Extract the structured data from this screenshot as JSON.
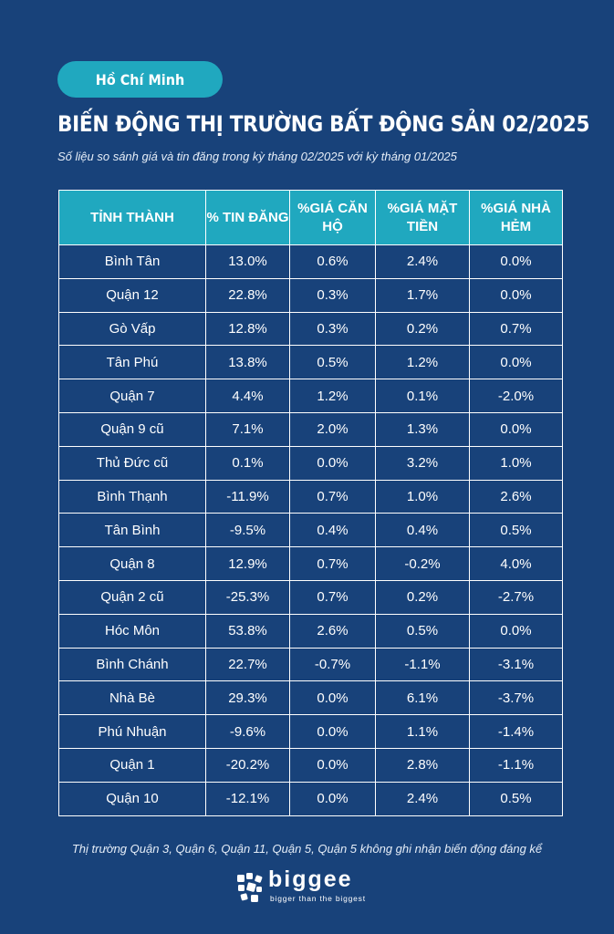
{
  "header": {
    "city_label": "Hồ Chí Minh",
    "title": "BIẾN ĐỘNG THỊ TRƯỜNG BẤT ĐỘNG SẢN 02/2025",
    "subtitle": "Số liệu so sánh giá và tin đăng trong kỳ tháng 02/2025 với kỳ tháng 01/2025"
  },
  "table": {
    "columns": [
      "TỈNH THÀNH",
      "% TIN ĐĂNG",
      "%GIÁ CĂN HỘ",
      "%GIÁ MẶT TIỀN",
      "%GIÁ NHÀ HẺM"
    ],
    "rows": [
      [
        "Bình Tân",
        "13.0%",
        "0.6%",
        "2.4%",
        "0.0%"
      ],
      [
        "Quận 12",
        "22.8%",
        "0.3%",
        "1.7%",
        "0.0%"
      ],
      [
        "Gò Vấp",
        "12.8%",
        "0.3%",
        "0.2%",
        "0.7%"
      ],
      [
        "Tân Phú",
        "13.8%",
        "0.5%",
        "1.2%",
        "0.0%"
      ],
      [
        "Quận 7",
        "4.4%",
        "1.2%",
        "0.1%",
        "-2.0%"
      ],
      [
        "Quận 9 cũ",
        "7.1%",
        "2.0%",
        "1.3%",
        "0.0%"
      ],
      [
        "Thủ Đức cũ",
        "0.1%",
        "0.0%",
        "3.2%",
        "1.0%"
      ],
      [
        "Bình Thạnh",
        "-11.9%",
        "0.7%",
        "1.0%",
        "2.6%"
      ],
      [
        "Tân Bình",
        "-9.5%",
        "0.4%",
        "0.4%",
        "0.5%"
      ],
      [
        "Quận 8",
        "12.9%",
        "0.7%",
        "-0.2%",
        "4.0%"
      ],
      [
        "Quận 2 cũ",
        "-25.3%",
        "0.7%",
        "0.2%",
        "-2.7%"
      ],
      [
        "Hóc Môn",
        "53.8%",
        "2.6%",
        "0.5%",
        "0.0%"
      ],
      [
        "Bình Chánh",
        "22.7%",
        "-0.7%",
        "-1.1%",
        "-3.1%"
      ],
      [
        "Nhà Bè",
        "29.3%",
        "0.0%",
        "6.1%",
        "-3.7%"
      ],
      [
        "Phú Nhuận",
        "-9.6%",
        "0.0%",
        "1.1%",
        "-1.4%"
      ],
      [
        "Quận 1",
        "-20.2%",
        "0.0%",
        "2.8%",
        "-1.1%"
      ],
      [
        "Quận 10",
        "-12.1%",
        "0.0%",
        "2.4%",
        "0.5%"
      ]
    ]
  },
  "footnote": "Thị trường Quận 3, Quận 6, Quận 11, Quận 5, Quận 5 không ghi nhận biến động đáng kể",
  "brand": {
    "name": "biggee",
    "tagline": "bigger than the biggest",
    "icon": "biggee-logo-icon"
  },
  "colors": {
    "background": "#18427a",
    "accent": "#20a8bf",
    "text": "#ffffff"
  }
}
